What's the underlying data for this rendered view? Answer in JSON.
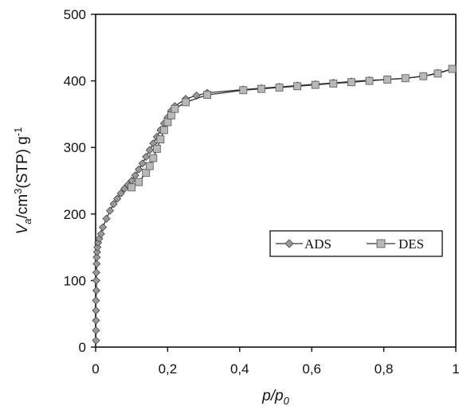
{
  "chart_data": {
    "type": "scatter",
    "xlim": [
      0,
      1
    ],
    "ylim": [
      0,
      500
    ],
    "x_ticks": [
      0,
      0.2,
      0.4,
      0.6,
      0.8,
      1
    ],
    "x_tick_labels": [
      "0",
      "0,2",
      "0,4",
      "0,6",
      "0,8",
      "1"
    ],
    "y_ticks": [
      0,
      100,
      200,
      300,
      400,
      500
    ],
    "y_tick_labels": [
      "0",
      "100",
      "200",
      "300",
      "400",
      "500"
    ],
    "xlabel": {
      "main": "p/p",
      "sub": "0"
    },
    "ylabel": {
      "var": "V",
      "sub": "a",
      "pre": "/cm",
      "sup": "3",
      "mid": "(STP) g",
      "sup2": "-1"
    },
    "legend_position": "center-right",
    "grid": false,
    "series": [
      {
        "name": "ADS",
        "marker": "diamond",
        "color": "#999999",
        "x": [
          0.001,
          0.001,
          0.001,
          0.001,
          0.001,
          0.002,
          0.002,
          0.002,
          0.003,
          0.003,
          0.004,
          0.005,
          0.007,
          0.01,
          0.015,
          0.02,
          0.03,
          0.04,
          0.05,
          0.06,
          0.07,
          0.08,
          0.09,
          0.1,
          0.11,
          0.12,
          0.13,
          0.14,
          0.15,
          0.16,
          0.17,
          0.18,
          0.19,
          0.2,
          0.21,
          0.22,
          0.25,
          0.28,
          0.31,
          0.41,
          0.46,
          0.51,
          0.56,
          0.61,
          0.66,
          0.71,
          0.76,
          0.81,
          0.86,
          0.91,
          0.95,
          0.99
        ],
        "y": [
          10,
          25,
          40,
          55,
          70,
          85,
          100,
          112,
          125,
          135,
          143,
          150,
          157,
          163,
          170,
          180,
          193,
          205,
          215,
          223,
          231,
          238,
          244,
          250,
          258,
          267,
          276,
          286,
          296,
          306,
          316,
          326,
          336,
          345,
          355,
          362,
          373,
          378,
          382,
          387,
          389,
          391,
          393,
          395,
          397,
          399,
          401,
          402,
          404,
          407,
          412,
          418
        ]
      },
      {
        "name": "DES",
        "marker": "square",
        "color": "#bbbbbb",
        "x": [
          0.1,
          0.12,
          0.14,
          0.15,
          0.16,
          0.17,
          0.18,
          0.19,
          0.2,
          0.21,
          0.22,
          0.25,
          0.31,
          0.41,
          0.46,
          0.51,
          0.56,
          0.61,
          0.66,
          0.71,
          0.76,
          0.81,
          0.86,
          0.91,
          0.95,
          0.99
        ],
        "y": [
          240,
          248,
          262,
          272,
          284,
          298,
          312,
          326,
          338,
          348,
          358,
          368,
          379,
          386,
          388,
          390,
          392,
          394,
          396,
          398,
          400,
          402,
          404,
          407,
          411,
          418
        ]
      }
    ]
  }
}
